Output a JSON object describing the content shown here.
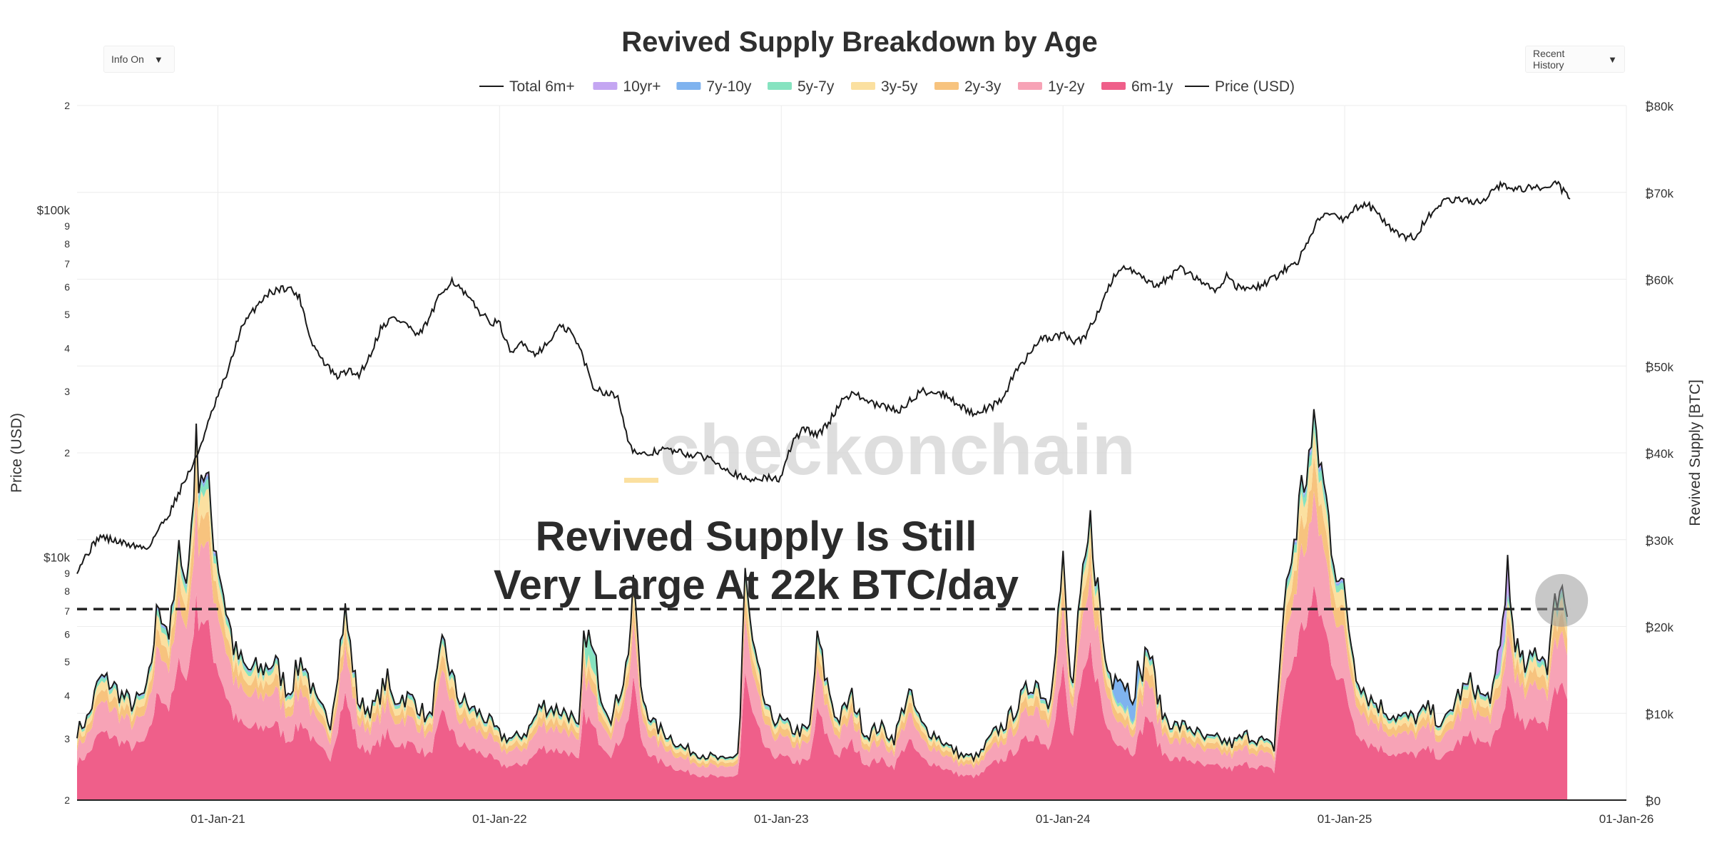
{
  "controls": {
    "info_toggle": "Info On",
    "history_select": "Recent History"
  },
  "watermark": "checkonchain",
  "annotation": {
    "line1": "Revived Supply Is Still",
    "line2": "Very Large At 22k BTC/day"
  },
  "chart_data": {
    "type": "area",
    "title": "Revived Supply Breakdown by Age",
    "xlabel": "",
    "ylabel_left": "Price (USD)",
    "ylabel_right": "Revived Supply [BTC]",
    "x_ticks": [
      "01-Jan-21",
      "01-Jan-22",
      "01-Jan-23",
      "01-Jan-24",
      "01-Jan-25",
      "01-Jan-26"
    ],
    "x_range": [
      "2020-07-01",
      "2026-01-01"
    ],
    "left_axis": {
      "scale": "log",
      "range": [
        2000,
        200000
      ],
      "major_labels": [
        "$10k",
        "$100k"
      ],
      "minor_labels": [
        "2",
        "3",
        "4",
        "5",
        "6",
        "7",
        "8",
        "9"
      ]
    },
    "right_axis": {
      "range": [
        0,
        80000
      ],
      "ticks": [
        "₿0",
        "₿10k",
        "₿20k",
        "₿30k",
        "₿40k",
        "₿50k",
        "₿60k",
        "₿70k",
        "₿80k"
      ]
    },
    "legend": [
      {
        "name": "Total 6m+",
        "color": "#1a1a1a",
        "kind": "line"
      },
      {
        "name": "10yr+",
        "color": "#c4a6f2",
        "kind": "area"
      },
      {
        "name": "7y-10y",
        "color": "#7fb3ef",
        "kind": "area"
      },
      {
        "name": "5y-7y",
        "color": "#86e3c0",
        "kind": "area"
      },
      {
        "name": "3y-5y",
        "color": "#fbe0a0",
        "kind": "area"
      },
      {
        "name": "2y-3y",
        "color": "#f7c37e",
        "kind": "area"
      },
      {
        "name": "1y-2y",
        "color": "#f7a3b6",
        "kind": "area"
      },
      {
        "name": "6m-1y",
        "color": "#ef5f8a",
        "kind": "area"
      },
      {
        "name": "Price (USD)",
        "color": "#1a1a1a",
        "kind": "line"
      }
    ],
    "reference_line": {
      "value": 22000,
      "label": "22k BTC/day"
    },
    "price_series": {
      "name": "Price (USD)",
      "t": [
        2020.5,
        2020.58,
        2020.66,
        2020.75,
        2020.83,
        2020.88,
        2020.92,
        2020.96,
        2021.0,
        2021.04,
        2021.08,
        2021.13,
        2021.17,
        2021.21,
        2021.25,
        2021.29,
        2021.33,
        2021.37,
        2021.42,
        2021.46,
        2021.5,
        2021.54,
        2021.58,
        2021.62,
        2021.67,
        2021.71,
        2021.75,
        2021.79,
        2021.83,
        2021.87,
        2021.92,
        2021.96,
        2022.0,
        2022.04,
        2022.08,
        2022.12,
        2022.17,
        2022.21,
        2022.25,
        2022.29,
        2022.33,
        2022.37,
        2022.42,
        2022.46,
        2022.5,
        2022.58,
        2022.67,
        2022.75,
        2022.83,
        2022.88,
        2022.92,
        2023.0,
        2023.04,
        2023.08,
        2023.13,
        2023.17,
        2023.21,
        2023.25,
        2023.33,
        2023.42,
        2023.5,
        2023.58,
        2023.67,
        2023.75,
        2023.79,
        2023.83,
        2023.87,
        2023.92,
        2023.96,
        2024.0,
        2024.04,
        2024.08,
        2024.13,
        2024.17,
        2024.21,
        2024.25,
        2024.29,
        2024.33,
        2024.37,
        2024.42,
        2024.46,
        2024.5,
        2024.54,
        2024.58,
        2024.62,
        2024.67,
        2024.71,
        2024.75,
        2024.79,
        2024.83,
        2024.87,
        2024.92,
        2024.96,
        2025.0,
        2025.04,
        2025.08,
        2025.12,
        2025.17,
        2025.21,
        2025.25,
        2025.29,
        2025.33,
        2025.37,
        2025.42,
        2025.46,
        2025.5,
        2025.54,
        2025.58,
        2025.62,
        2025.67,
        2025.71,
        2025.75,
        2025.78,
        2025.8
      ],
      "usd": [
        9200,
        11500,
        11000,
        10600,
        13500,
        16500,
        19000,
        23500,
        29000,
        35000,
        45000,
        52000,
        57000,
        59000,
        60000,
        56000,
        42000,
        37000,
        33000,
        34500,
        33500,
        38000,
        46000,
        49000,
        47000,
        43000,
        48500,
        57000,
        63000,
        58000,
        52000,
        48000,
        47000,
        38000,
        42000,
        38500,
        41000,
        46000,
        45000,
        39000,
        31000,
        30000,
        29000,
        21000,
        19500,
        20500,
        19800,
        19300,
        17500,
        16600,
        17000,
        16800,
        21500,
        23500,
        22500,
        24500,
        28000,
        29800,
        27500,
        26500,
        30200,
        29500,
        26000,
        27200,
        29000,
        34000,
        37500,
        43000,
        42500,
        44000,
        41500,
        43000,
        52000,
        62000,
        69000,
        66000,
        63000,
        60000,
        63500,
        68000,
        64500,
        62000,
        58000,
        65000,
        60000,
        59000,
        61000,
        63500,
        68000,
        70000,
        82000,
        98000,
        96000,
        94000,
        102000,
        104000,
        97000,
        87000,
        83000,
        84000,
        94000,
        104000,
        106000,
        108000,
        104000,
        108500,
        118000,
        116000,
        115000,
        117000,
        114000,
        121000,
        112000,
        110000
      ]
    },
    "revived_series": {
      "name": "Total 6m+",
      "t": [
        2020.5,
        2020.54,
        2020.58,
        2020.62,
        2020.66,
        2020.7,
        2020.75,
        2020.79,
        2020.83,
        2020.87,
        2020.89,
        2020.92,
        2020.95,
        2020.98,
        2021.0,
        2021.03,
        2021.06,
        2021.1,
        2021.15,
        2021.2,
        2021.25,
        2021.3,
        2021.35,
        2021.4,
        2021.45,
        2021.5,
        2021.55,
        2021.6,
        2021.62,
        2021.65,
        2021.7,
        2021.75,
        2021.8,
        2021.85,
        2021.9,
        2021.95,
        2022.0,
        2022.05,
        2022.1,
        2022.15,
        2022.2,
        2022.25,
        2022.28,
        2022.3,
        2022.35,
        2022.4,
        2022.45,
        2022.48,
        2022.5,
        2022.55,
        2022.6,
        2022.65,
        2022.7,
        2022.75,
        2022.8,
        2022.85,
        2022.87,
        2022.9,
        2022.95,
        2023.0,
        2023.05,
        2023.1,
        2023.13,
        2023.15,
        2023.2,
        2023.25,
        2023.3,
        2023.35,
        2023.4,
        2023.45,
        2023.5,
        2023.55,
        2023.6,
        2023.65,
        2023.7,
        2023.75,
        2023.8,
        2023.85,
        2023.9,
        2023.95,
        2024.0,
        2024.03,
        2024.06,
        2024.1,
        2024.15,
        2024.2,
        2024.25,
        2024.3,
        2024.35,
        2024.4,
        2024.45,
        2024.5,
        2024.55,
        2024.6,
        2024.65,
        2024.7,
        2024.75,
        2024.78,
        2024.82,
        2024.86,
        2024.9,
        2024.93,
        2024.96,
        2025.0,
        2025.04,
        2025.08,
        2025.12,
        2025.16,
        2025.2,
        2025.25,
        2025.3,
        2025.35,
        2025.4,
        2025.45,
        2025.5,
        2025.55,
        2025.58,
        2025.62,
        2025.65,
        2025.68,
        2025.72,
        2025.76,
        2025.79
      ],
      "btc": [
        8000,
        9500,
        14000,
        13500,
        12000,
        11000,
        12500,
        23000,
        19000,
        30000,
        24000,
        40000,
        38000,
        32000,
        28000,
        22000,
        17000,
        15000,
        15000,
        16000,
        12500,
        16500,
        11000,
        9000,
        22000,
        11000,
        10500,
        14000,
        11500,
        12000,
        11500,
        9000,
        18000,
        12000,
        10500,
        9500,
        7500,
        7000,
        8000,
        11000,
        10500,
        10000,
        7500,
        18500,
        13000,
        9500,
        15500,
        25000,
        12500,
        8500,
        7500,
        6000,
        5500,
        5000,
        4500,
        5500,
        26000,
        17000,
        10000,
        9000,
        8000,
        8000,
        19000,
        15000,
        9000,
        12000,
        7500,
        8500,
        7000,
        12500,
        8500,
        7500,
        6000,
        5000,
        5000,
        7500,
        9000,
        11500,
        14000,
        11000,
        27000,
        12000,
        22000,
        32000,
        16000,
        12000,
        10000,
        18000,
        10000,
        8500,
        8500,
        7000,
        7000,
        6500,
        7500,
        7000,
        6000,
        21000,
        30000,
        38000,
        42000,
        35000,
        29000,
        23000,
        15000,
        12000,
        11000,
        10000,
        9500,
        9500,
        10500,
        8500,
        12000,
        13500,
        11500,
        14000,
        24000,
        16000,
        15000,
        17500,
        16000,
        25500,
        22000
      ]
    },
    "band_shares": {
      "order": [
        "6m-1y",
        "1y-2y",
        "2y-3y",
        "3y-5y",
        "5y-7y",
        "7y-10y",
        "10yr+"
      ],
      "values": [
        0.55,
        0.24,
        0.09,
        0.07,
        0.03,
        0.01,
        0.01
      ]
    }
  }
}
